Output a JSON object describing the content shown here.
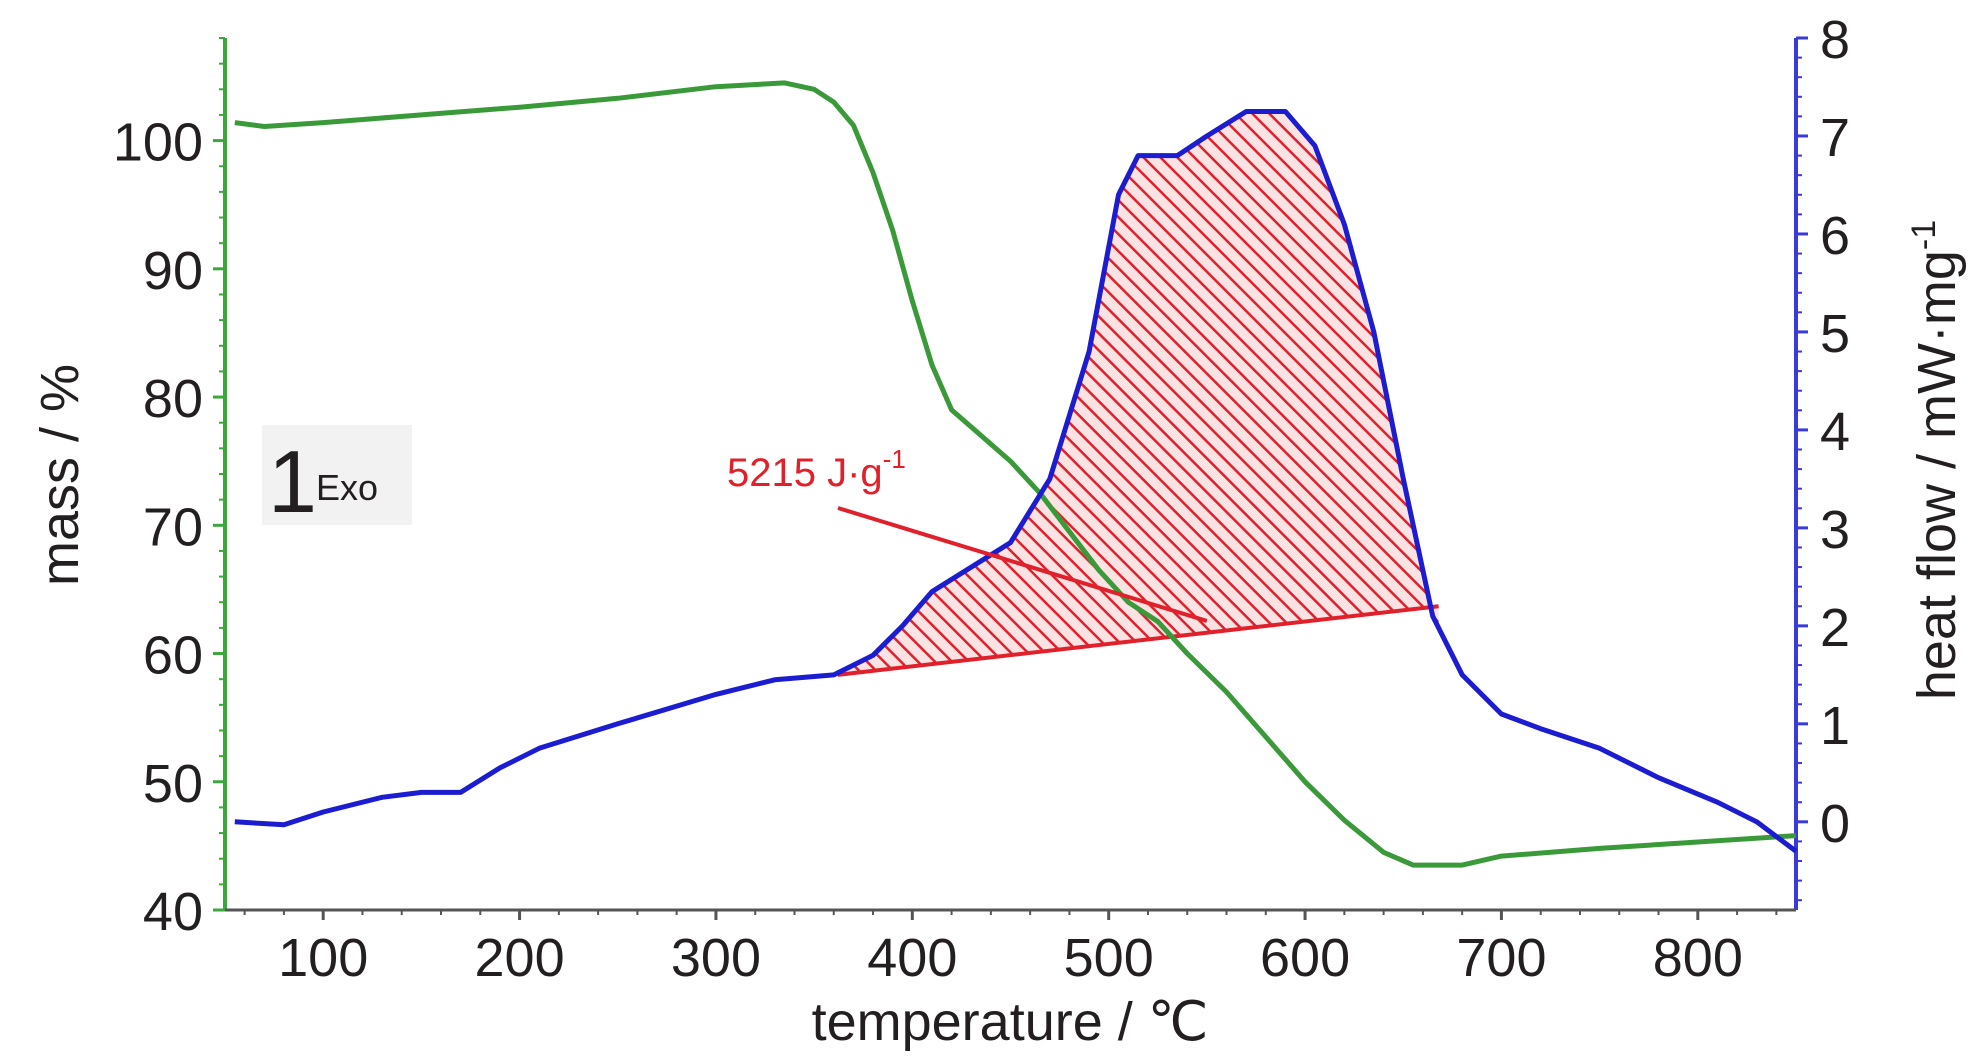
{
  "chart_data": {
    "type": "line",
    "xlabel": "temperature / ℃",
    "ylabel": "mass / %",
    "y2label": "heat flow / mW·mg",
    "y2label_superscript": "-1",
    "xlim": [
      50,
      850
    ],
    "ylim": [
      40,
      108
    ],
    "y2lim": [
      -0.9,
      8
    ],
    "xticks": [
      100,
      200,
      300,
      400,
      500,
      600,
      700,
      800
    ],
    "yticks": [
      40,
      50,
      60,
      70,
      80,
      90,
      100
    ],
    "y2ticks": [
      0,
      1,
      2,
      3,
      4,
      5,
      6,
      7,
      8
    ],
    "grid": false,
    "colors": {
      "mass": "#3a9a3a",
      "heat_flow": "#1c1cd0",
      "area": "#e0202a",
      "axis_left": "#3aa83a",
      "axis_right": "#3a3ad8"
    },
    "series": [
      {
        "axis": "left",
        "points": [
          [
            55,
            101.4
          ],
          [
            70,
            101.1
          ],
          [
            100,
            101.4
          ],
          [
            150,
            102.0
          ],
          [
            200,
            102.6
          ],
          [
            250,
            103.3
          ],
          [
            300,
            104.2
          ],
          [
            335,
            104.5
          ],
          [
            350,
            104.0
          ],
          [
            360,
            103.0
          ],
          [
            370,
            101.2
          ],
          [
            380,
            97.5
          ],
          [
            390,
            93.0
          ],
          [
            400,
            87.5
          ],
          [
            410,
            82.5
          ],
          [
            420,
            79.0
          ],
          [
            435,
            77.0
          ],
          [
            450,
            75.0
          ],
          [
            465,
            72.5
          ],
          [
            480,
            69.5
          ],
          [
            495,
            66.5
          ],
          [
            510,
            64.0
          ],
          [
            525,
            62.5
          ],
          [
            540,
            60.0
          ],
          [
            560,
            57.0
          ],
          [
            580,
            53.5
          ],
          [
            600,
            50.0
          ],
          [
            620,
            47.0
          ],
          [
            640,
            44.5
          ],
          [
            655,
            43.5
          ],
          [
            680,
            43.5
          ],
          [
            700,
            44.2
          ],
          [
            750,
            44.8
          ],
          [
            800,
            45.3
          ],
          [
            850,
            45.8
          ]
        ]
      },
      {
        "axis": "right",
        "points": [
          [
            55,
            0.0
          ],
          [
            80,
            -0.03
          ],
          [
            100,
            0.1
          ],
          [
            130,
            0.25
          ],
          [
            150,
            0.3
          ],
          [
            170,
            0.3
          ],
          [
            190,
            0.55
          ],
          [
            210,
            0.75
          ],
          [
            250,
            1.0
          ],
          [
            300,
            1.3
          ],
          [
            330,
            1.45
          ],
          [
            360,
            1.5
          ],
          [
            380,
            1.7
          ],
          [
            395,
            2.0
          ],
          [
            410,
            2.35
          ],
          [
            430,
            2.6
          ],
          [
            450,
            2.85
          ],
          [
            470,
            3.5
          ],
          [
            490,
            4.8
          ],
          [
            505,
            6.4
          ],
          [
            515,
            6.8
          ],
          [
            535,
            6.8
          ],
          [
            550,
            7.0
          ],
          [
            570,
            7.25
          ],
          [
            590,
            7.25
          ],
          [
            605,
            6.9
          ],
          [
            620,
            6.1
          ],
          [
            635,
            5.0
          ],
          [
            650,
            3.5
          ],
          [
            665,
            2.1
          ],
          [
            680,
            1.5
          ],
          [
            700,
            1.1
          ],
          [
            720,
            0.95
          ],
          [
            750,
            0.75
          ],
          [
            780,
            0.45
          ],
          [
            810,
            0.2
          ],
          [
            830,
            0.0
          ],
          [
            850,
            -0.3
          ]
        ]
      }
    ],
    "area": {
      "baseline_start": [
        362,
        1.5
      ],
      "baseline_end": [
        668,
        2.2
      ]
    },
    "annotation": {
      "label": "5215 J·g",
      "superscript": "-1",
      "target": [
        550,
        2.05
      ]
    },
    "exo_marker": {
      "label": "Exo",
      "symbol": "1"
    }
  }
}
